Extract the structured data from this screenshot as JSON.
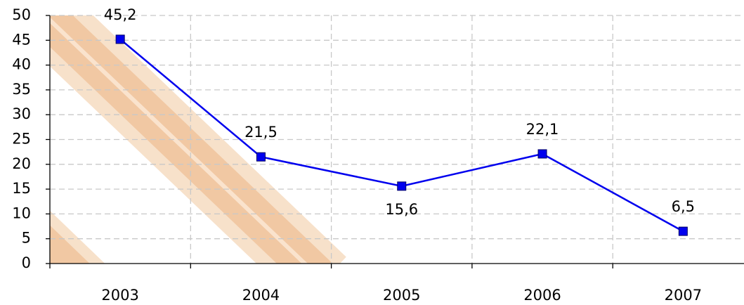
{
  "chart_data": {
    "type": "line",
    "categories": [
      "2003",
      "2004",
      "2005",
      "2006",
      "2007"
    ],
    "series": [
      {
        "name": "Series",
        "color": "#0000ee",
        "values": [
          45.2,
          21.5,
          15.6,
          22.1,
          6.5
        ],
        "value_labels": [
          "45,2",
          "21,5",
          "15,6",
          "22,1",
          "6,5"
        ]
      }
    ],
    "ylim": [
      0,
      50
    ],
    "yticks": [
      0,
      5,
      10,
      15,
      20,
      25,
      30,
      35,
      40,
      45,
      50
    ],
    "grid": true
  }
}
